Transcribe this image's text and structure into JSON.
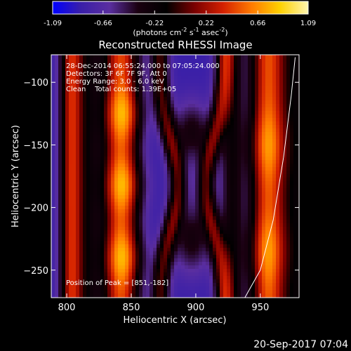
{
  "colorbar": {
    "ticks": [
      "-1.09",
      "-0.66",
      "-0.22",
      "0.22",
      "0.66",
      "1.09"
    ],
    "tick_values": [
      -1.09,
      -0.66,
      -0.22,
      0.22,
      0.66,
      1.09
    ],
    "range": [
      -1.09,
      1.09
    ],
    "unit_base": "(photons cm",
    "unit_exp1": "-2",
    "unit_mid": " s",
    "unit_exp2": "-1",
    "unit_mid2": " asec",
    "unit_exp3": "-2",
    "unit_end": ")"
  },
  "footer": {
    "timestamp": "20-Sep-2017 07:04"
  },
  "colors": {
    "background": "#000000",
    "foreground": "#ffffff",
    "colormap": [
      "#0000ff",
      "#3a1fa8",
      "#5a2ea0",
      "#1a0010",
      "#000000",
      "#7a0000",
      "#d42000",
      "#ff7a00",
      "#ffd000",
      "#fff6b0"
    ]
  },
  "chart_data": {
    "type": "heatmap",
    "title": "Reconstructed RHESSI Image",
    "xlabel": "Heliocentric X (arcsec)",
    "ylabel": "Heliocentric Y (arcsec)",
    "xlim": [
      788,
      980
    ],
    "ylim": [
      -272,
      -78
    ],
    "x_ticks": [
      800,
      850,
      900,
      950
    ],
    "y_ticks": [
      -100,
      -150,
      -200,
      -250
    ],
    "colormap": "rainbow (blue-purple-black-red-yellow-white)",
    "value_range": [
      -1.09,
      1.09
    ],
    "annotations": {
      "time_range": "28-Dec-2014 06:55:24.000 to 07:05:24.000",
      "detectors": "Detectors: 3F 6F 7F 9F, Att 0",
      "energy": "Energy Range: 3.0 - 6.0 keV",
      "method": "Clean    Total counts: 1.39E+05",
      "peak": "Position of Peak = [851,-182]"
    },
    "peak": {
      "x": 851,
      "y": -182
    },
    "limb_curve": [
      {
        "x": 938,
        "y": -272
      },
      {
        "x": 950,
        "y": -250
      },
      {
        "x": 960,
        "y": -210
      },
      {
        "x": 968,
        "y": -160
      },
      {
        "x": 974,
        "y": -110
      },
      {
        "x": 977,
        "y": -80
      }
    ]
  }
}
